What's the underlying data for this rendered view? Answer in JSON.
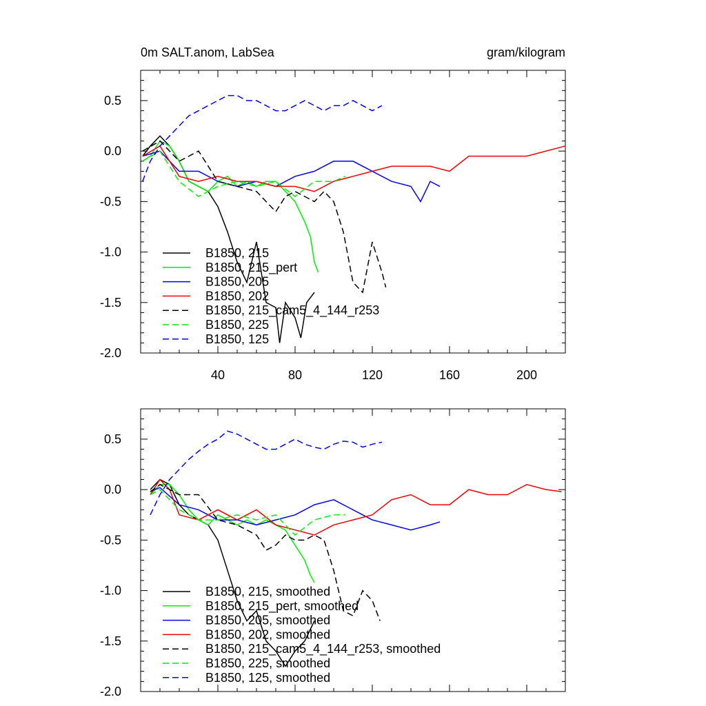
{
  "figure": {
    "title_left": "0m SALT.anom, LabSea",
    "title_right": "gram/kilogram"
  },
  "chart_data": [
    {
      "type": "line",
      "panel": "top",
      "xlim": [
        0,
        220
      ],
      "ylim": [
        -2.0,
        0.8
      ],
      "xticks": [
        40,
        80,
        120,
        160,
        200
      ],
      "xtick_labels": [
        "40",
        "80",
        "120",
        "160",
        "200"
      ],
      "yticks": [
        0.5,
        0.0,
        -0.5,
        -1.0,
        -1.5,
        -2.0
      ],
      "ytick_labels": [
        "0.5",
        "0.0",
        "-0.5",
        "-1.0",
        "-1.5",
        "-2.0"
      ],
      "legend_position": "lower-left",
      "series": [
        {
          "name": "B1850, 215",
          "color": "#000000",
          "dash": "solid",
          "x": [
            1,
            5,
            10,
            15,
            20,
            25,
            30,
            35,
            40,
            45,
            50,
            55,
            60,
            65,
            70,
            72,
            75,
            80,
            83,
            86,
            90
          ],
          "y": [
            -0.05,
            0.05,
            0.15,
            0.05,
            -0.1,
            -0.3,
            -0.35,
            -0.4,
            -0.55,
            -0.8,
            -1.1,
            -1.3,
            -0.9,
            -1.5,
            -1.55,
            -1.9,
            -1.5,
            -1.65,
            -1.85,
            -1.5,
            -1.4
          ]
        },
        {
          "name": "B1850, 215_pert",
          "color": "#00ee00",
          "dash": "solid",
          "x": [
            1,
            5,
            10,
            15,
            20,
            25,
            30,
            35,
            40,
            45,
            50,
            55,
            60,
            65,
            70,
            75,
            80,
            85,
            88,
            90,
            92
          ],
          "y": [
            -0.1,
            -0.05,
            0.1,
            0.05,
            -0.1,
            -0.3,
            -0.35,
            -0.4,
            -0.3,
            -0.25,
            -0.35,
            -0.3,
            -0.35,
            -0.3,
            -0.3,
            -0.4,
            -0.5,
            -0.7,
            -0.85,
            -1.1,
            -1.2
          ]
        },
        {
          "name": "B1850, 205",
          "color": "#0000ee",
          "dash": "solid",
          "x": [
            1,
            10,
            20,
            30,
            40,
            50,
            60,
            70,
            80,
            90,
            100,
            110,
            120,
            130,
            140,
            145,
            150,
            155
          ],
          "y": [
            -0.05,
            0.0,
            -0.2,
            -0.2,
            -0.3,
            -0.35,
            -0.3,
            -0.35,
            -0.25,
            -0.2,
            -0.1,
            -0.1,
            -0.2,
            -0.3,
            -0.35,
            -0.5,
            -0.3,
            -0.35
          ]
        },
        {
          "name": "B1850, 202",
          "color": "#ee0000",
          "dash": "solid",
          "x": [
            1,
            10,
            20,
            30,
            40,
            50,
            60,
            70,
            80,
            90,
            100,
            110,
            120,
            130,
            140,
            150,
            160,
            170,
            180,
            190,
            200,
            210,
            220
          ],
          "y": [
            -0.05,
            0.05,
            -0.25,
            -0.3,
            -0.25,
            -0.3,
            -0.3,
            -0.35,
            -0.35,
            -0.4,
            -0.3,
            -0.25,
            -0.2,
            -0.15,
            -0.15,
            -0.15,
            -0.2,
            -0.05,
            -0.05,
            -0.05,
            -0.05,
            0.0,
            0.05
          ]
        },
        {
          "name": "B1850, 215_cam5_4_144_r253",
          "color": "#000000",
          "dash": "dashed",
          "x": [
            1,
            10,
            20,
            30,
            40,
            50,
            60,
            65,
            70,
            75,
            80,
            85,
            90,
            95,
            100,
            105,
            110,
            115,
            120,
            125,
            127
          ],
          "y": [
            0.0,
            0.1,
            -0.1,
            0.0,
            -0.3,
            -0.35,
            -0.4,
            -0.5,
            -0.6,
            -0.45,
            -0.4,
            -0.45,
            -0.5,
            -0.4,
            -0.5,
            -0.8,
            -1.3,
            -1.4,
            -0.9,
            -1.2,
            -1.35
          ]
        },
        {
          "name": "B1850, 225",
          "color": "#00ee00",
          "dash": "dashed",
          "x": [
            1,
            10,
            20,
            30,
            40,
            50,
            60,
            70,
            80,
            90,
            100,
            106
          ],
          "y": [
            -0.1,
            0.0,
            -0.3,
            -0.45,
            -0.35,
            -0.3,
            -0.35,
            -0.3,
            -0.45,
            -0.3,
            -0.3,
            -0.25
          ]
        },
        {
          "name": "B1850, 125",
          "color": "#0000ee",
          "dash": "dashed",
          "x": [
            1,
            5,
            10,
            15,
            20,
            25,
            30,
            35,
            40,
            45,
            50,
            55,
            60,
            65,
            70,
            75,
            80,
            85,
            90,
            95,
            100,
            105,
            110,
            115,
            120,
            125
          ],
          "y": [
            -0.3,
            -0.1,
            0.05,
            0.15,
            0.25,
            0.35,
            0.4,
            0.45,
            0.5,
            0.55,
            0.55,
            0.5,
            0.5,
            0.45,
            0.4,
            0.4,
            0.45,
            0.5,
            0.45,
            0.4,
            0.45,
            0.45,
            0.5,
            0.45,
            0.4,
            0.45
          ]
        }
      ]
    },
    {
      "type": "line",
      "panel": "bottom",
      "xlim": [
        0,
        220
      ],
      "ylim": [
        -2.0,
        0.8
      ],
      "yticks": [
        0.5,
        0.0,
        -0.5,
        -1.0,
        -1.5,
        -2.0
      ],
      "ytick_labels": [
        "0.5",
        "0.0",
        "-0.5",
        "-1.0",
        "-1.5",
        "-2.0"
      ],
      "legend_position": "lower-left",
      "series": [
        {
          "name": "B1850, 215, smoothed",
          "color": "#000000",
          "dash": "solid",
          "x": [
            5,
            10,
            15,
            20,
            25,
            30,
            35,
            40,
            45,
            50,
            55,
            60,
            65,
            70,
            75,
            80,
            85,
            90
          ],
          "y": [
            0.0,
            0.1,
            0.05,
            -0.15,
            -0.25,
            -0.3,
            -0.35,
            -0.5,
            -0.8,
            -1.1,
            -1.3,
            -1.2,
            -1.5,
            -1.6,
            -1.75,
            -1.6,
            -1.5,
            -1.3
          ]
        },
        {
          "name": "B1850, 215_pert, smoothed",
          "color": "#00ee00",
          "dash": "solid",
          "x": [
            5,
            10,
            15,
            20,
            25,
            30,
            35,
            40,
            45,
            50,
            55,
            60,
            65,
            70,
            75,
            80,
            85,
            88,
            90
          ],
          "y": [
            -0.05,
            0.05,
            0.05,
            -0.05,
            -0.2,
            -0.3,
            -0.35,
            -0.25,
            -0.3,
            -0.35,
            -0.3,
            -0.35,
            -0.3,
            -0.35,
            -0.4,
            -0.55,
            -0.7,
            -0.85,
            -0.92
          ]
        },
        {
          "name": "B1850, 205, smoothed",
          "color": "#0000ee",
          "dash": "solid",
          "x": [
            5,
            10,
            20,
            30,
            40,
            50,
            60,
            70,
            80,
            90,
            100,
            110,
            120,
            130,
            140,
            150,
            155
          ],
          "y": [
            -0.02,
            0.02,
            -0.15,
            -0.2,
            -0.3,
            -0.3,
            -0.35,
            -0.3,
            -0.25,
            -0.15,
            -0.1,
            -0.2,
            -0.3,
            -0.35,
            -0.4,
            -0.35,
            -0.32
          ]
        },
        {
          "name": "B1850, 202, smoothed",
          "color": "#ee0000",
          "dash": "solid",
          "x": [
            5,
            10,
            15,
            20,
            30,
            40,
            50,
            60,
            70,
            80,
            90,
            100,
            110,
            120,
            130,
            140,
            150,
            160,
            170,
            180,
            190,
            200,
            210,
            218
          ],
          "y": [
            -0.05,
            0.1,
            0.0,
            -0.25,
            -0.3,
            -0.2,
            -0.3,
            -0.2,
            -0.35,
            -0.4,
            -0.45,
            -0.35,
            -0.3,
            -0.25,
            -0.1,
            -0.05,
            -0.15,
            -0.15,
            0.0,
            -0.05,
            -0.05,
            0.05,
            0.0,
            -0.02
          ]
        },
        {
          "name": "B1850, 215_cam5_4_144_r253, smoothed",
          "color": "#000000",
          "dash": "dashed",
          "x": [
            5,
            10,
            20,
            30,
            40,
            50,
            60,
            65,
            70,
            75,
            80,
            85,
            90,
            95,
            100,
            105,
            110,
            115,
            120,
            124
          ],
          "y": [
            -0.02,
            0.05,
            -0.05,
            -0.05,
            -0.3,
            -0.35,
            -0.45,
            -0.6,
            -0.55,
            -0.45,
            -0.5,
            -0.5,
            -0.45,
            -0.5,
            -0.8,
            -1.2,
            -1.25,
            -1.0,
            -1.1,
            -1.3
          ]
        },
        {
          "name": "B1850, 225, smoothed",
          "color": "#00ee00",
          "dash": "dashed",
          "x": [
            5,
            10,
            20,
            30,
            40,
            50,
            60,
            70,
            80,
            90,
            100,
            106
          ],
          "y": [
            -0.05,
            0.0,
            -0.2,
            -0.3,
            -0.3,
            -0.25,
            -0.3,
            -0.25,
            -0.45,
            -0.3,
            -0.25,
            -0.25
          ]
        },
        {
          "name": "B1850, 125, smoothed",
          "color": "#0000ee",
          "dash": "dashed",
          "x": [
            5,
            10,
            15,
            20,
            25,
            30,
            35,
            40,
            45,
            50,
            55,
            60,
            65,
            70,
            75,
            80,
            85,
            90,
            95,
            100,
            105,
            110,
            115,
            120,
            125
          ],
          "y": [
            -0.25,
            -0.05,
            0.1,
            0.2,
            0.3,
            0.38,
            0.45,
            0.5,
            0.58,
            0.55,
            0.5,
            0.45,
            0.4,
            0.4,
            0.45,
            0.5,
            0.45,
            0.42,
            0.4,
            0.45,
            0.48,
            0.47,
            0.42,
            0.45,
            0.47
          ]
        }
      ]
    }
  ]
}
